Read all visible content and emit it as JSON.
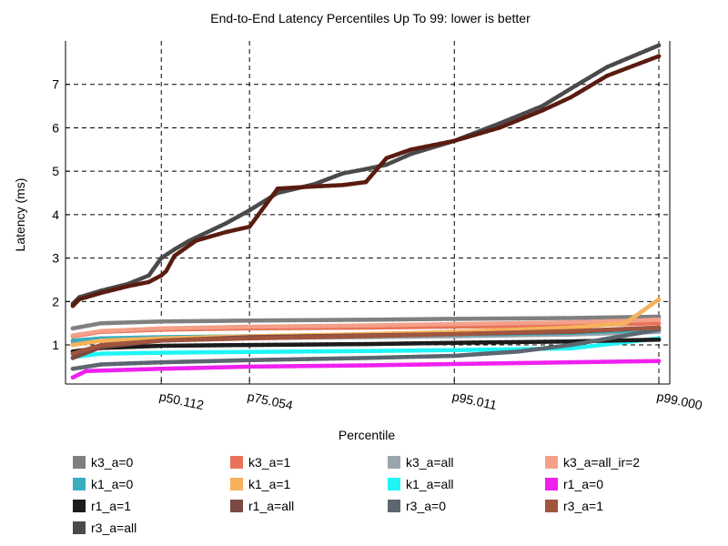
{
  "chart_data": {
    "type": "line",
    "title": "End-to-End Latency Percentiles Up To 99: lower is better",
    "xlabel": "Percentile",
    "ylabel": "Latency (ms)",
    "x_scale": "log-complement",
    "xlim": [
      0,
      99
    ],
    "ylim": [
      0.1,
      8.0
    ],
    "x_ticks": [
      {
        "value": 50.112,
        "label": "p50.112"
      },
      {
        "value": 75.054,
        "label": "p75.054"
      },
      {
        "value": 95.011,
        "label": "p95.011"
      },
      {
        "value": 99.0,
        "label": "p99.000"
      }
    ],
    "y_ticks": [
      1,
      2,
      3,
      4,
      5,
      6,
      7
    ],
    "grid": true,
    "legend_position": "bottom",
    "series": [
      {
        "name": "k3_a=0",
        "color": "#808080",
        "points": [
          [
            0,
            1.38
          ],
          [
            20,
            1.5
          ],
          [
            50.112,
            1.54
          ],
          [
            75.054,
            1.56
          ],
          [
            90,
            1.58
          ],
          [
            95.011,
            1.6
          ],
          [
            98,
            1.62
          ],
          [
            99,
            1.65
          ]
        ]
      },
      {
        "name": "k3_a=1",
        "color": "#e8735a",
        "points": [
          [
            0,
            1.2
          ],
          [
            20,
            1.3
          ],
          [
            50.112,
            1.35
          ],
          [
            75.054,
            1.38
          ],
          [
            90,
            1.4
          ],
          [
            95.011,
            1.42
          ],
          [
            98,
            1.45
          ],
          [
            99,
            1.5
          ]
        ]
      },
      {
        "name": "k3_a=all",
        "color": "#9aa6ad",
        "points": [
          [
            0,
            1.05
          ],
          [
            20,
            1.1
          ],
          [
            50.112,
            1.14
          ],
          [
            75.054,
            1.16
          ],
          [
            90,
            1.18
          ],
          [
            95.011,
            1.2
          ],
          [
            98,
            1.24
          ],
          [
            99,
            1.3
          ]
        ]
      },
      {
        "name": "k3_a=all_ir=2",
        "color": "#f4a089",
        "points": [
          [
            0,
            1.22
          ],
          [
            20,
            1.32
          ],
          [
            50.112,
            1.38
          ],
          [
            75.054,
            1.42
          ],
          [
            90,
            1.45
          ],
          [
            95.011,
            1.48
          ],
          [
            98,
            1.52
          ],
          [
            99,
            1.58
          ]
        ]
      },
      {
        "name": "k1_a=0",
        "color": "#3aacbf",
        "points": [
          [
            0,
            1.1
          ],
          [
            20,
            1.15
          ],
          [
            50.112,
            1.18
          ],
          [
            75.054,
            1.2
          ],
          [
            90,
            1.22
          ],
          [
            95.011,
            1.24
          ],
          [
            98,
            1.28
          ],
          [
            99,
            1.35
          ]
        ]
      },
      {
        "name": "k1_a=1",
        "color": "#f6b25b",
        "points": [
          [
            0,
            1.0
          ],
          [
            20,
            1.1
          ],
          [
            50.112,
            1.15
          ],
          [
            75.054,
            1.2
          ],
          [
            90,
            1.25
          ],
          [
            95.011,
            1.3
          ],
          [
            98,
            1.4
          ],
          [
            98.7,
            1.5
          ],
          [
            99,
            2.05
          ]
        ]
      },
      {
        "name": "k1_a=all",
        "color": "#1ff5f5",
        "points": [
          [
            0,
            0.72
          ],
          [
            20,
            0.8
          ],
          [
            50.112,
            0.82
          ],
          [
            75.054,
            0.84
          ],
          [
            90,
            0.86
          ],
          [
            95.011,
            0.88
          ],
          [
            98,
            0.92
          ],
          [
            99,
            1.15
          ]
        ]
      },
      {
        "name": "r1_a=0",
        "color": "#f020f0",
        "points": [
          [
            0,
            0.25
          ],
          [
            10,
            0.4
          ],
          [
            50.112,
            0.45
          ],
          [
            75.054,
            0.5
          ],
          [
            90,
            0.53
          ],
          [
            95.011,
            0.56
          ],
          [
            98,
            0.6
          ],
          [
            99,
            0.63
          ]
        ]
      },
      {
        "name": "r1_a=1",
        "color": "#1c1c1c",
        "points": [
          [
            0,
            0.85
          ],
          [
            20,
            0.93
          ],
          [
            50.112,
            0.98
          ],
          [
            75.054,
            1.0
          ],
          [
            90,
            1.02
          ],
          [
            95.011,
            1.05
          ],
          [
            98,
            1.08
          ],
          [
            99,
            1.12
          ]
        ]
      },
      {
        "name": "r1_a=all",
        "color": "#7a4a42",
        "points": [
          [
            0,
            0.7
          ],
          [
            20,
            0.95
          ],
          [
            50.112,
            1.1
          ],
          [
            75.054,
            1.18
          ],
          [
            90,
            1.22
          ],
          [
            95.011,
            1.25
          ],
          [
            98,
            1.3
          ],
          [
            99,
            1.4
          ]
        ]
      },
      {
        "name": "r3_a=0",
        "color": "#5c6670",
        "points": [
          [
            0,
            0.45
          ],
          [
            20,
            0.55
          ],
          [
            50.112,
            0.6
          ],
          [
            75.054,
            0.65
          ],
          [
            90,
            0.7
          ],
          [
            95.011,
            0.75
          ],
          [
            97,
            0.85
          ],
          [
            98,
            1.0
          ],
          [
            99,
            1.35
          ]
        ]
      },
      {
        "name": "r3_a=1",
        "color": "#a0553f",
        "points": [
          [
            0,
            0.8
          ],
          [
            20,
            1.0
          ],
          [
            50.112,
            1.1
          ],
          [
            75.054,
            1.15
          ],
          [
            90,
            1.2
          ],
          [
            95.011,
            1.25
          ],
          [
            98,
            1.32
          ],
          [
            99,
            1.4
          ]
        ]
      },
      {
        "name": "r3_a=all",
        "color": "#4a4a4a",
        "points": [
          [
            0,
            1.95
          ],
          [
            5,
            2.1
          ],
          [
            20,
            2.25
          ],
          [
            35,
            2.4
          ],
          [
            45,
            2.6
          ],
          [
            50.112,
            3.0
          ],
          [
            55,
            3.2
          ],
          [
            60,
            3.4
          ],
          [
            70,
            3.8
          ],
          [
            75.054,
            4.1
          ],
          [
            80,
            4.5
          ],
          [
            85,
            4.7
          ],
          [
            88,
            4.95
          ],
          [
            90,
            5.05
          ],
          [
            91.5,
            5.15
          ],
          [
            93,
            5.4
          ],
          [
            95.011,
            5.7
          ],
          [
            96.5,
            6.1
          ],
          [
            97.5,
            6.5
          ],
          [
            98,
            6.9
          ],
          [
            98.5,
            7.4
          ],
          [
            99,
            7.9
          ]
        ]
      },
      {
        "name": "",
        "color": "#5a1c10",
        "points": [
          [
            0,
            1.9
          ],
          [
            5,
            2.05
          ],
          [
            20,
            2.2
          ],
          [
            35,
            2.35
          ],
          [
            45,
            2.45
          ],
          [
            50.112,
            2.6
          ],
          [
            52,
            2.7
          ],
          [
            55,
            3.05
          ],
          [
            62,
            3.4
          ],
          [
            70,
            3.6
          ],
          [
            75.054,
            3.72
          ],
          [
            80,
            4.6
          ],
          [
            85,
            4.65
          ],
          [
            88,
            4.68
          ],
          [
            90,
            4.75
          ],
          [
            91.5,
            5.3
          ],
          [
            93,
            5.5
          ],
          [
            95.011,
            5.7
          ],
          [
            96.5,
            6.0
          ],
          [
            97.5,
            6.4
          ],
          [
            98,
            6.7
          ],
          [
            98.5,
            7.2
          ],
          [
            99,
            7.65
          ]
        ]
      }
    ]
  }
}
